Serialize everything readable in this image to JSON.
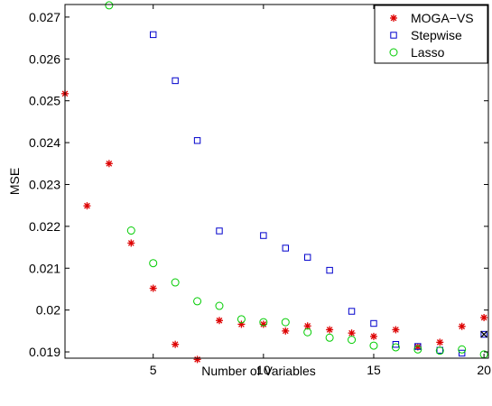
{
  "chart_data": {
    "type": "scatter",
    "xlabel": "Number of Variables",
    "ylabel": "MSE",
    "xlim": [
      1,
      20.2
    ],
    "ylim": [
      0.01885,
      0.0273
    ],
    "xticks": [
      5,
      10,
      15,
      20
    ],
    "yticks": [
      0.019,
      0.02,
      0.021,
      0.022,
      0.023,
      0.024,
      0.025,
      0.026,
      0.027
    ],
    "ytick_labels": [
      "0.019",
      "0.02",
      "0.021",
      "0.022",
      "0.023",
      "0.024",
      "0.025",
      "0.026",
      "0.027"
    ],
    "xtick_labels": [
      "5",
      "10",
      "15",
      "20"
    ],
    "grid": false,
    "legend_position": "top-right",
    "series": [
      {
        "name": "MOGA−VS",
        "marker": "asterisk",
        "color": "#dd0000",
        "x": [
          1,
          2,
          3,
          4,
          5,
          6,
          7,
          8,
          9,
          10,
          11,
          12,
          13,
          14,
          15,
          16,
          17,
          18,
          19,
          20
        ],
        "y": [
          0.02517,
          0.02249,
          0.0235,
          0.0216,
          0.02052,
          0.01918,
          0.01882,
          0.01975,
          0.01966,
          0.01966,
          0.0195,
          0.01962,
          0.01953,
          0.01945,
          0.01937,
          0.01953,
          0.01912,
          0.01923,
          0.01961,
          0.01982
        ]
      },
      {
        "name": "Stepwise",
        "marker": "square",
        "color": "#0000cc",
        "x": [
          5,
          6,
          7,
          8,
          10,
          11,
          12,
          13,
          14,
          15,
          16,
          17,
          18,
          19,
          20
        ],
        "y": [
          0.02658,
          0.02548,
          0.02405,
          0.02189,
          0.02178,
          0.02148,
          0.02126,
          0.02095,
          0.01997,
          0.01968,
          0.01918,
          0.01913,
          0.01904,
          0.01897,
          0.01942
        ]
      },
      {
        "name": "Lasso",
        "marker": "circle",
        "color": "#00cc00",
        "x": [
          3,
          4,
          5,
          6,
          7,
          8,
          9,
          10,
          11,
          12,
          13,
          14,
          15,
          16,
          17,
          18,
          19,
          20
        ],
        "y": [
          0.02728,
          0.0219,
          0.02112,
          0.02066,
          0.02021,
          0.0201,
          0.01978,
          0.01971,
          0.01971,
          0.01947,
          0.01934,
          0.01929,
          0.01915,
          0.01911,
          0.01906,
          0.01903,
          0.01906,
          0.01894
        ]
      }
    ],
    "highlight_marker": {
      "marker": "x",
      "color": "#000000",
      "x": 20,
      "y": 0.01942
    }
  }
}
